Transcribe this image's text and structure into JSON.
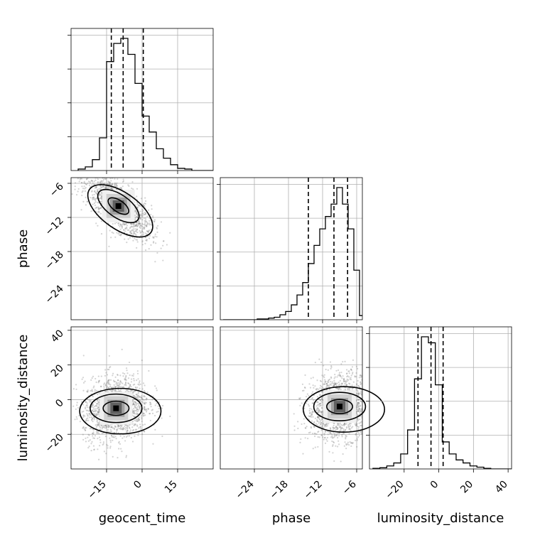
{
  "chart_data": {
    "type": "corner",
    "parameters": [
      "geocent_time",
      "phase",
      "luminosity_distance"
    ],
    "axis_labels": {
      "geocent_time": "geocent_time",
      "phase": "phase",
      "luminosity_distance": "luminosity_distance"
    },
    "ranges": {
      "geocent_time": [
        -30,
        30
      ],
      "phase": [
        -30,
        -5
      ],
      "luminosity_distance": [
        -40,
        42
      ]
    },
    "ticks": {
      "geocent_time": [
        "−15",
        "0",
        "15"
      ],
      "phase": [
        "−24",
        "−18",
        "−12",
        "−6"
      ],
      "luminosity_distance": [
        "−20",
        "0",
        "20",
        "40"
      ]
    },
    "tick_values": {
      "geocent_time": [
        -15,
        0,
        15
      ],
      "phase": [
        -24,
        -18,
        -12,
        -6
      ],
      "luminosity_distance": [
        -20,
        0,
        20,
        40
      ]
    },
    "grid": true,
    "marginals": {
      "geocent_time": {
        "bin_edges": [
          -27,
          -24,
          -21,
          -18,
          -15,
          -12,
          -9,
          -6,
          -3,
          0,
          3,
          6,
          9,
          12,
          15,
          18,
          21,
          24,
          27,
          30
        ],
        "counts": [
          2,
          5,
          15,
          45,
          150,
          175,
          182,
          160,
          120,
          75,
          53,
          30,
          17,
          8,
          3,
          2,
          0,
          0,
          0
        ],
        "quantiles": [
          -13,
          -8,
          0.5
        ]
      },
      "phase": {
        "bin_edges": [
          -29.5,
          -28.5,
          -27.5,
          -26.5,
          -25.5,
          -24.5,
          -23.5,
          -22.5,
          -21.5,
          -20.5,
          -19.5,
          -18.5,
          -17.5,
          -16.5,
          -15.5,
          -14.5,
          -13.5,
          -12.5,
          -11.5,
          -10.5,
          -9.5,
          -8.5,
          -7.5,
          -6.5,
          -5.5,
          -4.5
        ],
        "counts": [
          0,
          0,
          0,
          0,
          0,
          0,
          1,
          1,
          2,
          3,
          6,
          10,
          18,
          30,
          45,
          68,
          90,
          110,
          125,
          140,
          160,
          140,
          110,
          60,
          5
        ],
        "quantiles": [
          -14.5,
          -10,
          -7.6
        ]
      },
      "luminosity_distance": {
        "bin_edges": [
          -38,
          -34,
          -30,
          -26,
          -22,
          -18,
          -14,
          -10,
          -6,
          -2,
          2,
          6,
          10,
          14,
          18,
          22,
          26,
          30,
          34,
          38,
          42
        ],
        "counts": [
          1,
          2,
          5,
          10,
          25,
          65,
          150,
          220,
          210,
          140,
          45,
          25,
          15,
          10,
          5,
          3,
          1,
          0,
          0,
          0
        ],
        "quantiles": [
          -12,
          -4.5,
          2.5
        ]
      }
    },
    "correlations": {
      "phase_vs_geocent_time": -0.7,
      "luminosity_distance_vs_geocent_time": 0.15,
      "luminosity_distance_vs_phase": 0.1
    },
    "peak_density": {
      "phase_vs_geocent_time": [
        -10,
        -10
      ],
      "luminosity_distance_vs_geocent_time": [
        -11,
        -5
      ],
      "luminosity_distance_vs_phase": [
        -9,
        -4
      ]
    },
    "contour_levels": [
      "inner",
      "middle",
      "outer"
    ]
  }
}
